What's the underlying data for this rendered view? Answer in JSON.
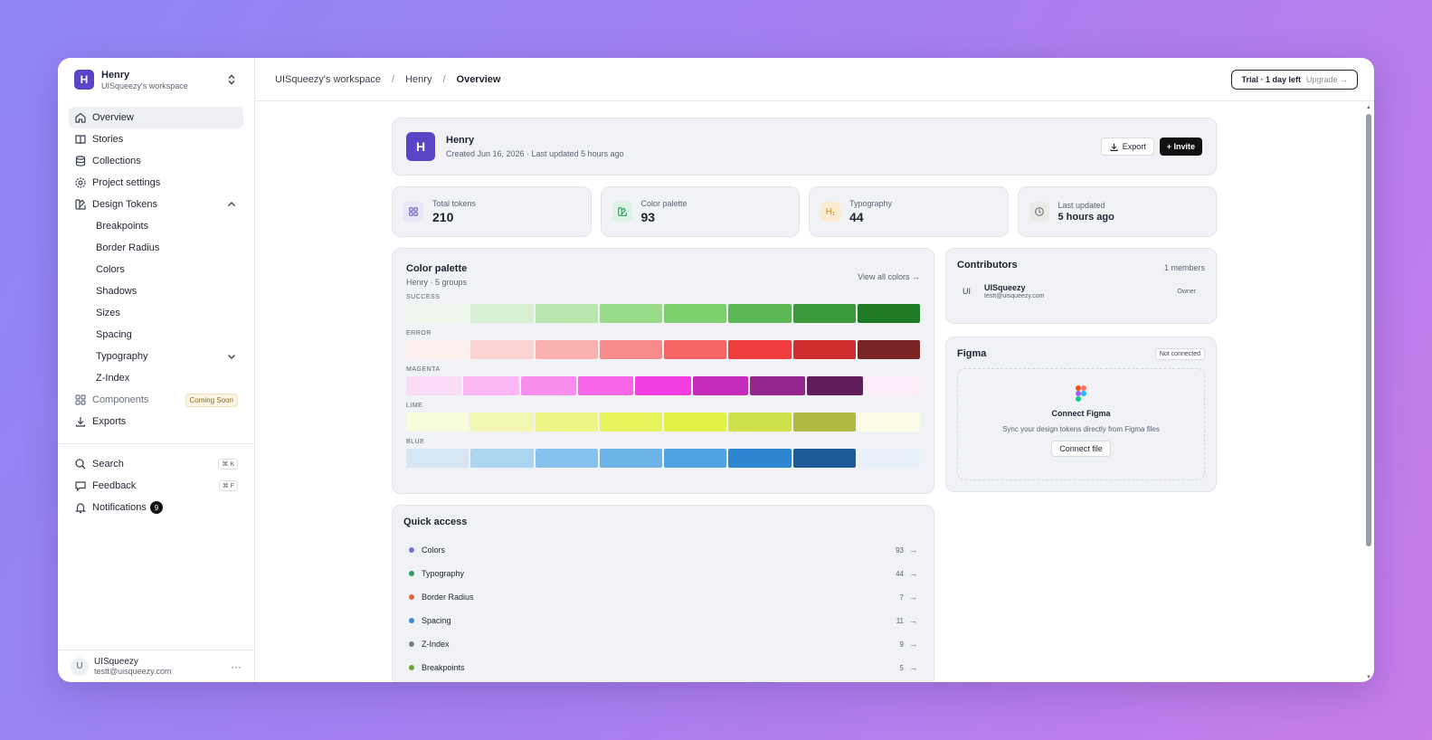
{
  "workspace": {
    "initial": "H",
    "name": "Henry",
    "sub": "UISqueezy's workspace"
  },
  "nav": {
    "overview": "Overview",
    "stories": "Stories",
    "collections": "Collections",
    "project_settings": "Project settings",
    "design_tokens": "Design Tokens",
    "sub": [
      "Breakpoints",
      "Border Radius",
      "Colors",
      "Shadows",
      "Sizes",
      "Spacing",
      "Typography",
      "Z-Index"
    ],
    "components": "Components",
    "coming_soon": "Coming Soon",
    "exports": "Exports",
    "search": "Search",
    "search_kbd": "⌘ K",
    "feedback": "Feedback",
    "feedback_kbd": "⌘ F",
    "notifications": "Notifications",
    "notifications_count": "9"
  },
  "user": {
    "initial": "U",
    "name": "UISqueezy",
    "email": "testt@uisqueezy.com",
    "more": "···"
  },
  "breadcrumb": {
    "workspace": "UISqueezy's workspace",
    "sep": "/",
    "project": "Henry",
    "current": "Overview"
  },
  "trial": {
    "text": "Trial · 1 day left",
    "upgrade": "Upgrade →"
  },
  "project": {
    "initial": "H",
    "name": "Henry",
    "meta": "Created Jun 16, 2026 · Last updated 5 hours ago",
    "export": "Export",
    "invite": "+ Invite"
  },
  "stats": [
    {
      "label": "Total tokens",
      "value": "210"
    },
    {
      "label": "Color palette",
      "value": "93"
    },
    {
      "label": "Typography",
      "value": "44",
      "icon_text": "H₁"
    },
    {
      "label": "Last updated",
      "value": "5 hours ago"
    }
  ],
  "palette": {
    "title": "Color palette",
    "sub": "Henry · 5 groups",
    "view_all": "View all colors →",
    "groups": [
      {
        "label": "SUCCESS",
        "colors": [
          "#eef6ec",
          "#d7efd2",
          "#b9e6ad",
          "#9adb8a",
          "#7ccf6c",
          "#5cb854",
          "#3b9a3a",
          "#1f7a25"
        ]
      },
      {
        "label": "ERROR",
        "colors": [
          "#fdeeee",
          "#fcd4d4",
          "#fbb0b0",
          "#f98a8a",
          "#f66565",
          "#f03d3d",
          "#cf2f2f",
          "#7a2626"
        ]
      },
      {
        "label": "MAGENTA",
        "colors": [
          "#fbdcf7",
          "#fbb7f3",
          "#f98ded",
          "#f666e6",
          "#f23de0",
          "#c52bbb",
          "#962690",
          "#621c5e",
          "#fcecfa"
        ]
      },
      {
        "label": "LIME",
        "colors": [
          "#f8fbdc",
          "#f2f7b2",
          "#ecf585",
          "#e6f35d",
          "#e2f244",
          "#cee04a",
          "#adb941",
          "#fbfbe6"
        ]
      },
      {
        "label": "BLUE",
        "colors": [
          "#d6e6f5",
          "#add5f2",
          "#87c2ee",
          "#6cb3e8",
          "#4fa3e0",
          "#2e86d0",
          "#1d5c99",
          "#e7f0f9"
        ]
      }
    ]
  },
  "contributors": {
    "title": "Contributors",
    "count": "1 members",
    "initials": "UI",
    "name": "UISqueezy",
    "email": "testt@uisqueezy.com",
    "role": "Owner"
  },
  "figma": {
    "title": "Figma",
    "status": "Not connected",
    "head": "Connect Figma",
    "desc": "Sync your design tokens directly from Figma files",
    "button": "Connect file"
  },
  "quick_access": {
    "title": "Quick access",
    "items": [
      {
        "label": "Colors",
        "count": "93",
        "color": "#7c6fd6"
      },
      {
        "label": "Typography",
        "count": "44",
        "color": "#2e9a6a"
      },
      {
        "label": "Border Radius",
        "count": "7",
        "color": "#e0653a"
      },
      {
        "label": "Spacing",
        "count": "11",
        "color": "#3b8bd6"
      },
      {
        "label": "Z-Index",
        "count": "9",
        "color": "#7a7f8c"
      },
      {
        "label": "Breakpoints",
        "count": "5",
        "color": "#6aa832"
      }
    ]
  }
}
